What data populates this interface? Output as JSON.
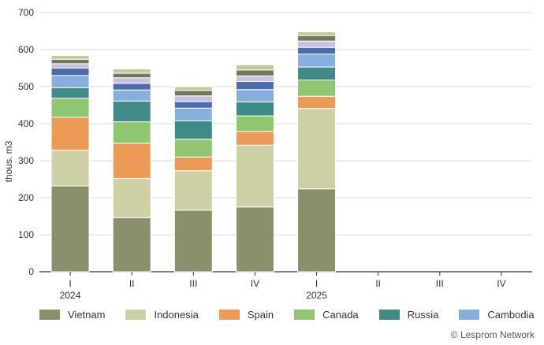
{
  "chart_data": {
    "type": "bar",
    "stacked": true,
    "ylabel": "thous. m3",
    "ylim": [
      0,
      700
    ],
    "yticks": [
      0,
      100,
      200,
      300,
      400,
      500,
      600,
      700
    ],
    "grid": true,
    "categories": [
      "I",
      "II",
      "III",
      "IV",
      "I",
      "II",
      "III",
      "IV"
    ],
    "year_labels": [
      {
        "index": 0,
        "label": "2024"
      },
      {
        "index": 4,
        "label": "2025"
      }
    ],
    "series": [
      {
        "name": "Vietnam",
        "color": "#8a8f6c",
        "values": [
          232,
          146,
          166,
          175,
          224,
          null,
          null,
          null
        ]
      },
      {
        "name": "Indonesia",
        "color": "#cfcfa6",
        "values": [
          96,
          106,
          107,
          167,
          217,
          null,
          null,
          null
        ]
      },
      {
        "name": "Spain",
        "color": "#ec9a55",
        "values": [
          89,
          95,
          37,
          37,
          33,
          null,
          null,
          null
        ]
      },
      {
        "name": "Canada",
        "color": "#90c670",
        "values": [
          52,
          58,
          48,
          42,
          44,
          null,
          null,
          null
        ]
      },
      {
        "name": "Russia",
        "color": "#3f8a87",
        "values": [
          28,
          56,
          50,
          38,
          35,
          null,
          null,
          null
        ]
      },
      {
        "name": "Cambodia",
        "color": "#86aedf",
        "values": [
          33,
          30,
          34,
          33,
          35,
          null,
          null,
          null
        ]
      },
      {
        "name": "",
        "color": "#4d6bb0",
        "values": [
          20,
          18,
          18,
          22,
          18,
          null,
          null,
          null
        ]
      },
      {
        "name": "",
        "color": "#c9c0e3",
        "values": [
          12,
          15,
          15,
          15,
          17,
          null,
          null,
          null
        ]
      },
      {
        "name": "",
        "color": "#6f7a58",
        "values": [
          12,
          12,
          15,
          16,
          15,
          null,
          null,
          null
        ]
      },
      {
        "name": "",
        "color": "#c5c799",
        "values": [
          10,
          12,
          10,
          14,
          10,
          null,
          null,
          null
        ]
      }
    ]
  },
  "legend": [
    {
      "label": "Vietnam",
      "color": "#8a8f6c"
    },
    {
      "label": "Indonesia",
      "color": "#cfcfa6"
    },
    {
      "label": "Spain",
      "color": "#ec9a55"
    },
    {
      "label": "Canada",
      "color": "#90c670"
    },
    {
      "label": "Russia",
      "color": "#3f8a87"
    },
    {
      "label": "Cambodia",
      "color": "#86aedf"
    }
  ],
  "copyright": "© Lesprom Network"
}
